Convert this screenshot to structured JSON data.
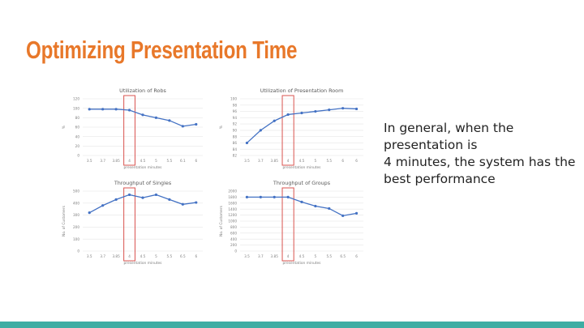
{
  "slide": {
    "title": "Optimizing Presentation Time",
    "body_lines": [
      "In general, when the",
      "presentation is",
      "4 minutes, the system has the",
      "best performance"
    ]
  },
  "colors": {
    "title": "#e8782a",
    "series": "#4472c4",
    "highlight": "#d9534f",
    "bottom_bar": "#3eada3",
    "grid": "#e6e6e6",
    "axis_text": "#7f7f7f"
  },
  "chart_data": [
    {
      "type": "line",
      "title": "Utilization of Robs",
      "ylabel": "%",
      "xlabel": "presentation minutes",
      "categories": [
        "3.5",
        "3.7",
        "3.85",
        "4",
        "4.5",
        "5",
        "5.5",
        "6.1",
        "6"
      ],
      "values": [
        98,
        98,
        98,
        96,
        86,
        80,
        74,
        62,
        66
      ],
      "ylim": [
        0,
        120
      ],
      "yticks": [
        "0",
        "20",
        "40",
        "60",
        "80",
        "100",
        "120"
      ],
      "highlight_category": "4",
      "grid": true
    },
    {
      "type": "line",
      "title": "Utilization of Presentation Room",
      "ylabel": "%",
      "xlabel": "presentation minutes",
      "categories": [
        "3.5",
        "3.7",
        "3.85",
        "4",
        "4.5",
        "5",
        "5.5",
        "6",
        "6"
      ],
      "values": [
        86,
        90,
        93,
        95,
        95.5,
        96,
        96.5,
        97,
        96.8
      ],
      "ylim": [
        82,
        100
      ],
      "yticks": [
        "82",
        "84",
        "86",
        "88",
        "90",
        "92",
        "94",
        "96",
        "98",
        "100"
      ],
      "highlight_category": "4",
      "grid": true
    },
    {
      "type": "line",
      "title": "Throughput of Singles",
      "ylabel": "No. of Customers",
      "xlabel": "presentation minutes",
      "categories": [
        "3.5",
        "3.7",
        "3.85",
        "4",
        "4.5",
        "5",
        "5.5",
        "6.5",
        "6"
      ],
      "values": [
        320,
        380,
        430,
        470,
        445,
        470,
        430,
        390,
        405
      ],
      "ylim": [
        0,
        500
      ],
      "yticks": [
        "0",
        "100",
        "200",
        "300",
        "400",
        "500"
      ],
      "highlight_category": "4",
      "grid": true
    },
    {
      "type": "line",
      "title": "Throughput of Groups",
      "ylabel": "No. of Customers",
      "xlabel": "presentation minutes",
      "categories": [
        "3.5",
        "3.7",
        "3.85",
        "4",
        "4.5",
        "5",
        "5.5",
        "6.5",
        "6"
      ],
      "values": [
        1800,
        1800,
        1800,
        1800,
        1640,
        1500,
        1420,
        1180,
        1260
      ],
      "ylim": [
        0,
        2000
      ],
      "yticks": [
        "0",
        "200",
        "400",
        "600",
        "800",
        "1000",
        "1200",
        "1400",
        "1600",
        "1800",
        "2000"
      ],
      "highlight_category": "4",
      "grid": true
    }
  ]
}
